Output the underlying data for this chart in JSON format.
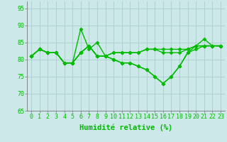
{
  "background_color": "#cce8e8",
  "grid_color": "#aacccc",
  "line_color": "#00bb00",
  "marker": "D",
  "marker_size": 2.5,
  "linewidth": 1.0,
  "xlabel": "Humidité relative (%)",
  "xlabel_fontsize": 7.5,
  "tick_fontsize": 6.0,
  "ylim": [
    65,
    97
  ],
  "yticks": [
    65,
    70,
    75,
    80,
    85,
    90,
    95
  ],
  "xlim": [
    -0.5,
    23.5
  ],
  "series": [
    [
      81,
      83,
      82,
      82,
      79,
      79,
      82,
      84,
      81,
      81,
      82,
      82,
      82,
      82,
      83,
      83,
      82,
      82,
      82,
      83,
      84,
      84,
      84,
      84
    ],
    [
      81,
      83,
      82,
      82,
      79,
      79,
      89,
      83,
      85,
      81,
      80,
      79,
      79,
      78,
      77,
      75,
      73,
      75,
      78,
      82,
      84,
      86,
      84,
      84
    ],
    [
      81,
      83,
      82,
      82,
      79,
      79,
      82,
      84,
      81,
      81,
      80,
      79,
      79,
      78,
      77,
      75,
      73,
      75,
      78,
      82,
      83,
      84,
      84,
      84
    ],
    [
      81,
      83,
      82,
      82,
      79,
      79,
      82,
      84,
      81,
      81,
      82,
      82,
      82,
      82,
      83,
      83,
      83,
      83,
      83,
      83,
      84,
      84,
      84,
      84
    ]
  ]
}
